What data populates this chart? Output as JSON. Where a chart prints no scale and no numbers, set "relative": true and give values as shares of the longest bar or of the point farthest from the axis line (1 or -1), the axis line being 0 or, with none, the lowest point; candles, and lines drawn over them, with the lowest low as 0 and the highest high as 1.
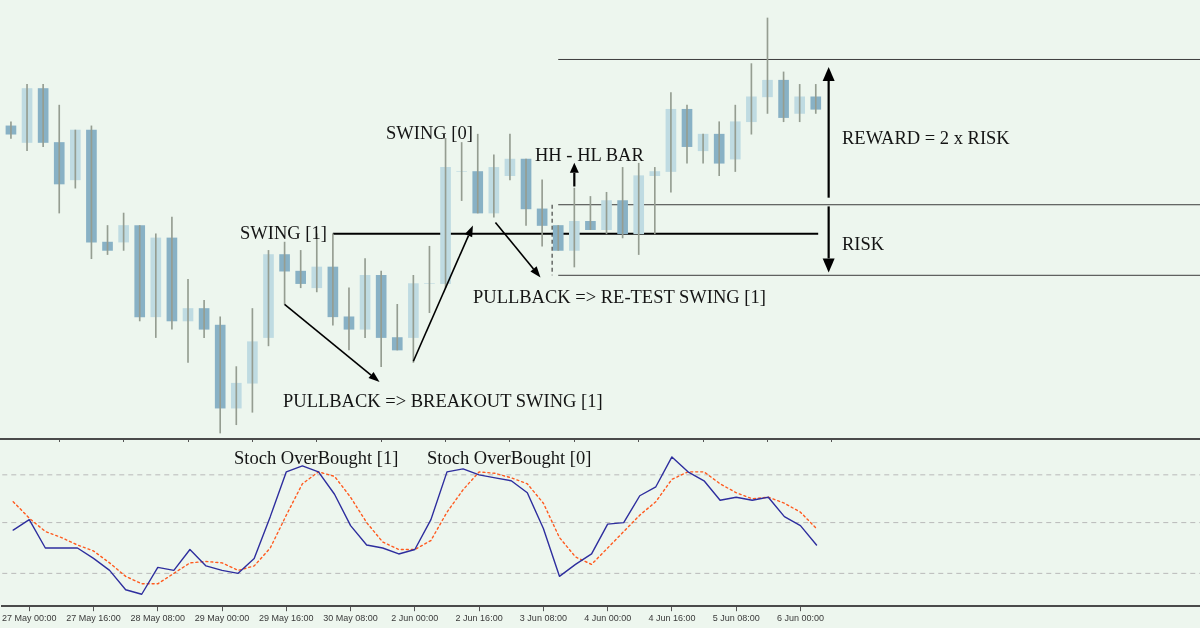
{
  "chart_data": [
    {
      "type": "candlestick",
      "relative": true,
      "tick_labels": false,
      "categories": [
        null,
        "27 May 00:00",
        null,
        null,
        null,
        "27 May 16:00",
        null,
        null,
        null,
        "28 May 08:00",
        null,
        null,
        null,
        "29 May 00:00",
        null,
        null,
        null,
        "29 May 16:00",
        null,
        null,
        null,
        "30 May 08:00",
        null,
        null,
        null,
        "2 Jun 00:00",
        null,
        null,
        null,
        "2 Jun 16:00",
        null,
        null,
        null,
        "3 Jun 08:00",
        null,
        null,
        null,
        "4 Jun 00:00",
        null,
        null,
        null,
        "4 Jun 16:00",
        null,
        null,
        null,
        "5 Jun 08:00",
        null,
        null,
        null,
        "6 Jun 00:00",
        null
      ],
      "ohlc": [
        [
          0.74,
          0.75,
          0.71,
          0.72
        ],
        [
          0.7,
          0.84,
          0.68,
          0.83
        ],
        [
          0.83,
          0.84,
          0.69,
          0.7
        ],
        [
          0.7,
          0.79,
          0.53,
          0.6
        ],
        [
          0.61,
          0.73,
          0.59,
          0.73
        ],
        [
          0.73,
          0.74,
          0.42,
          0.46
        ],
        [
          0.46,
          0.5,
          0.43,
          0.44
        ],
        [
          0.46,
          0.53,
          0.44,
          0.5
        ],
        [
          0.5,
          0.5,
          0.27,
          0.28
        ],
        [
          0.28,
          0.48,
          0.23,
          0.47
        ],
        [
          0.47,
          0.52,
          0.25,
          0.27
        ],
        [
          0.27,
          0.37,
          0.17,
          0.3
        ],
        [
          0.3,
          0.32,
          0.23,
          0.25
        ],
        [
          0.26,
          0.28,
          0,
          0.06
        ],
        [
          0.06,
          0.16,
          0.02,
          0.12
        ],
        [
          0.12,
          0.3,
          0.05,
          0.22
        ],
        [
          0.23,
          0.44,
          0.21,
          0.43
        ],
        [
          0.43,
          0.46,
          0.31,
          0.39
        ],
        [
          0.39,
          0.44,
          0.35,
          0.36
        ],
        [
          0.35,
          0.48,
          0.34,
          0.4
        ],
        [
          0.4,
          0.48,
          0.26,
          0.28
        ],
        [
          0.28,
          0.35,
          0.2,
          0.25
        ],
        [
          0.25,
          0.42,
          0.23,
          0.38
        ],
        [
          0.38,
          0.39,
          0.16,
          0.23
        ],
        [
          0.23,
          0.31,
          0.2,
          0.2
        ],
        [
          0.23,
          0.38,
          0.17,
          0.36
        ],
        [
          0.36,
          0.45,
          0.29,
          0.36
        ],
        [
          0.36,
          0.71,
          0.35,
          0.64
        ],
        [
          0.63,
          0.7,
          0.56,
          0.63
        ],
        [
          0.63,
          0.72,
          0.53,
          0.53
        ],
        [
          0.53,
          0.67,
          0.52,
          0.64
        ],
        [
          0.62,
          0.72,
          0.61,
          0.66
        ],
        [
          0.66,
          0.66,
          0.5,
          0.54
        ],
        [
          0.54,
          0.61,
          0.45,
          0.5
        ],
        [
          0.5,
          0.5,
          0.44,
          0.44
        ],
        [
          0.44,
          0.59,
          0.4,
          0.51
        ],
        [
          0.51,
          0.57,
          0.49,
          0.49
        ],
        [
          0.49,
          0.58,
          0.48,
          0.56
        ],
        [
          0.56,
          0.64,
          0.47,
          0.48
        ],
        [
          0.48,
          0.65,
          0.43,
          0.62
        ],
        [
          0.62,
          0.64,
          0.48,
          0.63
        ],
        [
          0.63,
          0.82,
          0.58,
          0.78
        ],
        [
          0.78,
          0.79,
          0.65,
          0.69
        ],
        [
          0.68,
          0.72,
          0.65,
          0.72
        ],
        [
          0.72,
          0.75,
          0.62,
          0.65
        ],
        [
          0.66,
          0.79,
          0.63,
          0.75
        ],
        [
          0.75,
          0.89,
          0.72,
          0.81
        ],
        [
          0.81,
          1,
          0.77,
          0.85
        ],
        [
          0.85,
          0.87,
          0.75,
          0.76
        ],
        [
          0.77,
          0.84,
          0.75,
          0.81
        ],
        [
          0.81,
          0.84,
          0.77,
          0.78
        ]
      ],
      "colors": [
        "#88b1c5",
        "#bfdbe2",
        "#88b1c5",
        "#88b1c5",
        "#bfdbe2",
        "#88b1c5",
        "#88b1c5",
        "#bfdbe2",
        "#88b1c5",
        "#bfdbe2",
        "#88b1c5",
        "#bfdbe2",
        "#88b1c5",
        "#88b1c5",
        "#bfdbe2",
        "#bfdbe2",
        "#bfdbe2",
        "#88b1c5",
        "#88b1c5",
        "#bfdbe2",
        "#88b1c5",
        "#88b1c5",
        "#bfdbe2",
        "#88b1c5",
        "#88b1c5",
        "#bfdbe2",
        "#bfdbe2",
        "#bfdbe2",
        "#bfdbe2",
        "#88b1c5",
        "#bfdbe2",
        "#bfdbe2",
        "#88b1c5",
        "#88b1c5",
        "#88b1c5",
        "#bfdbe2",
        "#88b1c5",
        "#bfdbe2",
        "#88b1c5",
        "#bfdbe2",
        "#bfdbe2",
        "#bfdbe2",
        "#88b1c5",
        "#bfdbe2",
        "#88b1c5",
        "#bfdbe2",
        "#bfdbe2",
        "#bfdbe2",
        "#88b1c5",
        "#bfdbe2",
        "#88b1c5"
      ],
      "ref_lines": [
        {
          "axis": "y",
          "value": 0.48,
          "color": "#000000"
        },
        {
          "axis": "y",
          "value": 0.9,
          "color": "#3c3c3c"
        },
        {
          "axis": "y",
          "value": 0.55,
          "color": "#3c3c3c"
        },
        {
          "axis": "y",
          "value": 0.38,
          "color": "#3c3c3c"
        }
      ],
      "annotations": [
        "SWING [0]",
        "SWING [1]",
        "HH - HL BAR",
        "PULLBACK => RE-TEST SWING [1]",
        {
          "text": "PULLBACK => BREAKOUT SWING [1]",
          "x": "29 May 16:00",
          "y": 0.31
        },
        "REWARD = 2 x RISK",
        "RISK"
      ]
    },
    {
      "type": "line",
      "relative": true,
      "tick_labels": "x",
      "marker": "none",
      "categories": [
        null,
        "27 May 00:00",
        null,
        null,
        null,
        "27 May 16:00",
        null,
        null,
        null,
        "28 May 08:00",
        null,
        null,
        null,
        "29 May 00:00",
        null,
        null,
        null,
        "29 May 16:00",
        null,
        null,
        null,
        "30 May 08:00",
        null,
        null,
        null,
        "2 Jun 00:00",
        null,
        null,
        null,
        "2 Jun 16:00",
        null,
        null,
        null,
        "3 Jun 08:00",
        null,
        null,
        null,
        "4 Jun 00:00",
        null,
        null,
        null,
        "4 Jun 16:00",
        null,
        null,
        null,
        "5 Jun 08:00",
        null,
        null,
        null,
        "6 Jun 00:00",
        null
      ],
      "series": [
        {
          "color": "#2e2e9e",
          "values": [
            0.51,
            0.58,
            0.39,
            0.39,
            0.39,
            0.32,
            0.24,
            0.11,
            0.08,
            0.26,
            0.24,
            0.38,
            0.27,
            0.24,
            0.22,
            0.32,
            0.6,
            0.9,
            0.94,
            0.9,
            0.75,
            0.54,
            0.41,
            0.39,
            0.35,
            0.38,
            0.58,
            0.9,
            0.92,
            0.88,
            0.86,
            0.84,
            0.76,
            0.52,
            0.2,
            0.28,
            0.35,
            0.55,
            0.56,
            0.74,
            0.8,
            1.0,
            0.9,
            0.84,
            0.71,
            0.73,
            0.71,
            0.73,
            0.6,
            0.54,
            0.41
          ]
        },
        {
          "color": "#ff5a1f",
          "line_style": "dotted",
          "values": [
            0.7,
            0.59,
            0.5,
            0.46,
            0.41,
            0.37,
            0.29,
            0.2,
            0.15,
            0.15,
            0.22,
            0.29,
            0.3,
            0.29,
            0.24,
            0.27,
            0.39,
            0.61,
            0.82,
            0.9,
            0.87,
            0.73,
            0.56,
            0.43,
            0.38,
            0.38,
            0.44,
            0.63,
            0.78,
            0.9,
            0.89,
            0.86,
            0.82,
            0.69,
            0.46,
            0.33,
            0.28,
            0.39,
            0.5,
            0.61,
            0.7,
            0.85,
            0.9,
            0.9,
            0.82,
            0.76,
            0.72,
            0.73,
            0.69,
            0.63,
            0.52
          ]
        }
      ],
      "ref_lines": [
        {
          "axis": "y",
          "value": 0.88,
          "color": "#b9b9b9",
          "line_style": "dashed"
        },
        {
          "axis": "y",
          "value": 0.56,
          "color": "#b9b9b9",
          "line_style": "dashed"
        },
        {
          "axis": "y",
          "value": 0.22,
          "color": "#b9b9b9",
          "line_style": "dashed"
        }
      ],
      "annotations": [
        "Stoch OverBought [1]",
        "Stoch OverBought [0]"
      ]
    }
  ]
}
